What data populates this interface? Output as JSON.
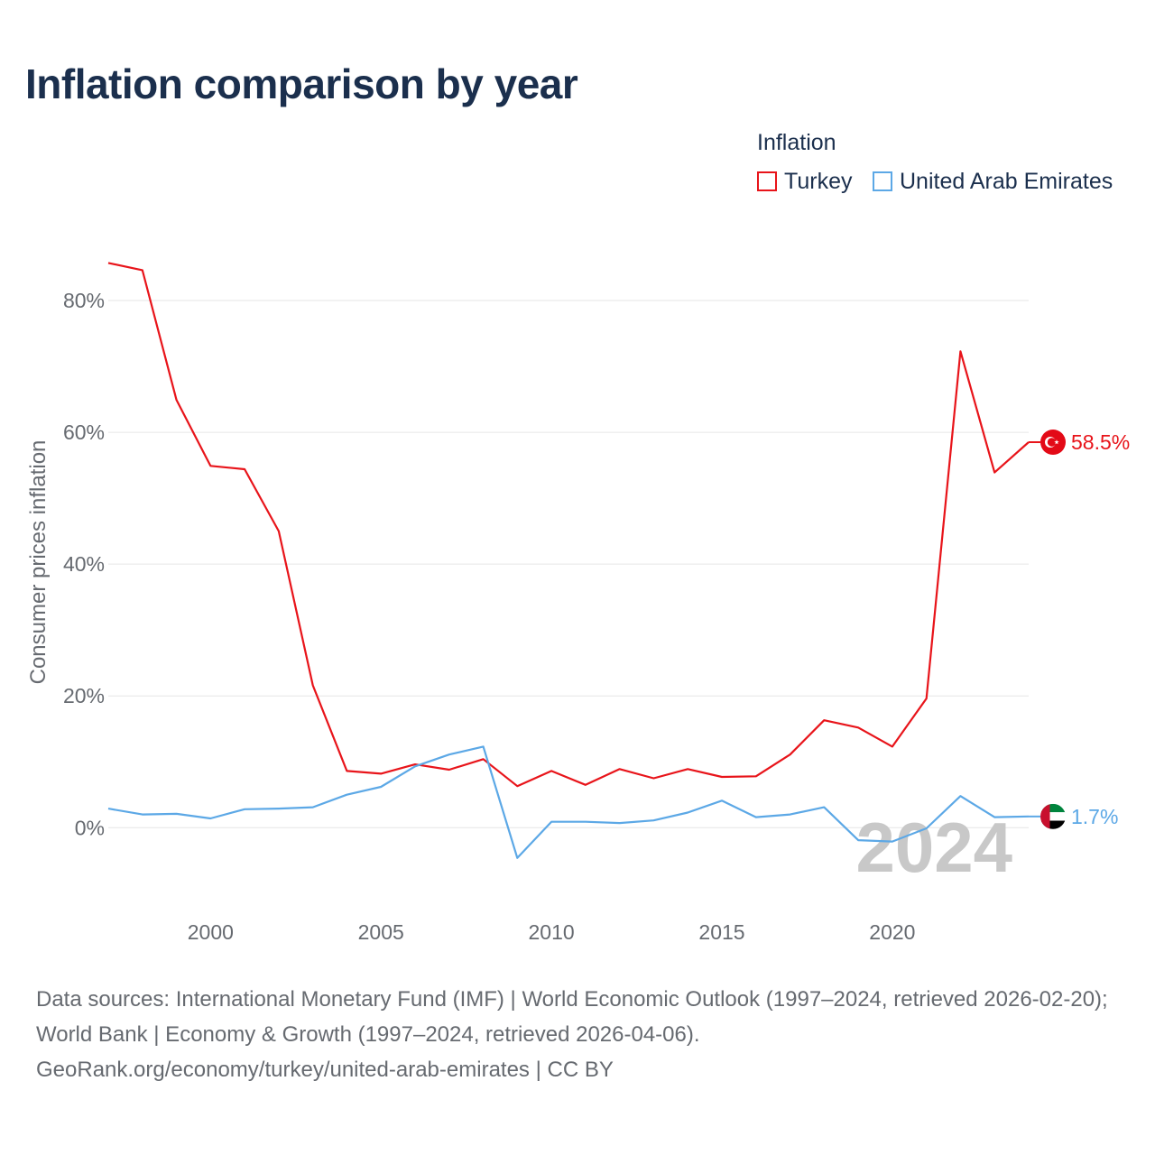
{
  "chart_data": {
    "type": "line",
    "title": "Inflation comparison by year",
    "legend_title": "Inflation",
    "legend_position": "top-right",
    "ylabel": "Consumer prices inflation",
    "xlabel": "",
    "x": [
      1997,
      1998,
      1999,
      2000,
      2001,
      2002,
      2003,
      2004,
      2005,
      2006,
      2007,
      2008,
      2009,
      2010,
      2011,
      2012,
      2013,
      2014,
      2015,
      2016,
      2017,
      2018,
      2019,
      2020,
      2021,
      2022,
      2023,
      2024
    ],
    "xlim": [
      1997,
      2024
    ],
    "ylim": [
      -12.7,
      90
    ],
    "x_ticks": [
      2000,
      2005,
      2010,
      2015,
      2020
    ],
    "x_tick_labels": [
      "2000",
      "2005",
      "2010",
      "2015",
      "2020"
    ],
    "y_ticks": [
      0,
      20,
      40,
      60,
      80
    ],
    "y_tick_labels": [
      "0%",
      "20%",
      "40%",
      "60%",
      "80%"
    ],
    "grid": true,
    "year_label": "2024",
    "series": [
      {
        "name": "Turkey",
        "color": "#e8141a",
        "values": [
          85.7,
          84.6,
          64.9,
          54.9,
          54.4,
          45.0,
          21.6,
          8.6,
          8.2,
          9.6,
          8.8,
          10.4,
          6.3,
          8.6,
          6.5,
          8.9,
          7.5,
          8.9,
          7.7,
          7.8,
          11.1,
          16.3,
          15.2,
          12.3,
          19.6,
          72.3,
          53.9,
          58.5
        ],
        "end_label": "58.5%",
        "flag_icon": "turkey-flag-icon"
      },
      {
        "name": "United Arab Emirates",
        "color": "#5ca8e6",
        "values": [
          2.9,
          2.0,
          2.1,
          1.4,
          2.8,
          2.9,
          3.1,
          5.0,
          6.2,
          9.3,
          11.1,
          12.3,
          -4.6,
          0.9,
          0.9,
          0.7,
          1.1,
          2.3,
          4.1,
          1.6,
          2.0,
          3.1,
          -1.9,
          -2.1,
          -0.1,
          4.8,
          1.6,
          1.7
        ],
        "end_label": "1.7%",
        "flag_icon": "uae-flag-icon"
      }
    ]
  },
  "footer": {
    "sources": "Data sources: International Monetary Fund (IMF) | World Economic Outlook (1997–2024, retrieved 2026-02-20); World Bank | Economy & Growth (1997–2024, retrieved 2026-04-06).",
    "attribution": "GeoRank.org/economy/turkey/united-arab-emirates | CC BY"
  }
}
